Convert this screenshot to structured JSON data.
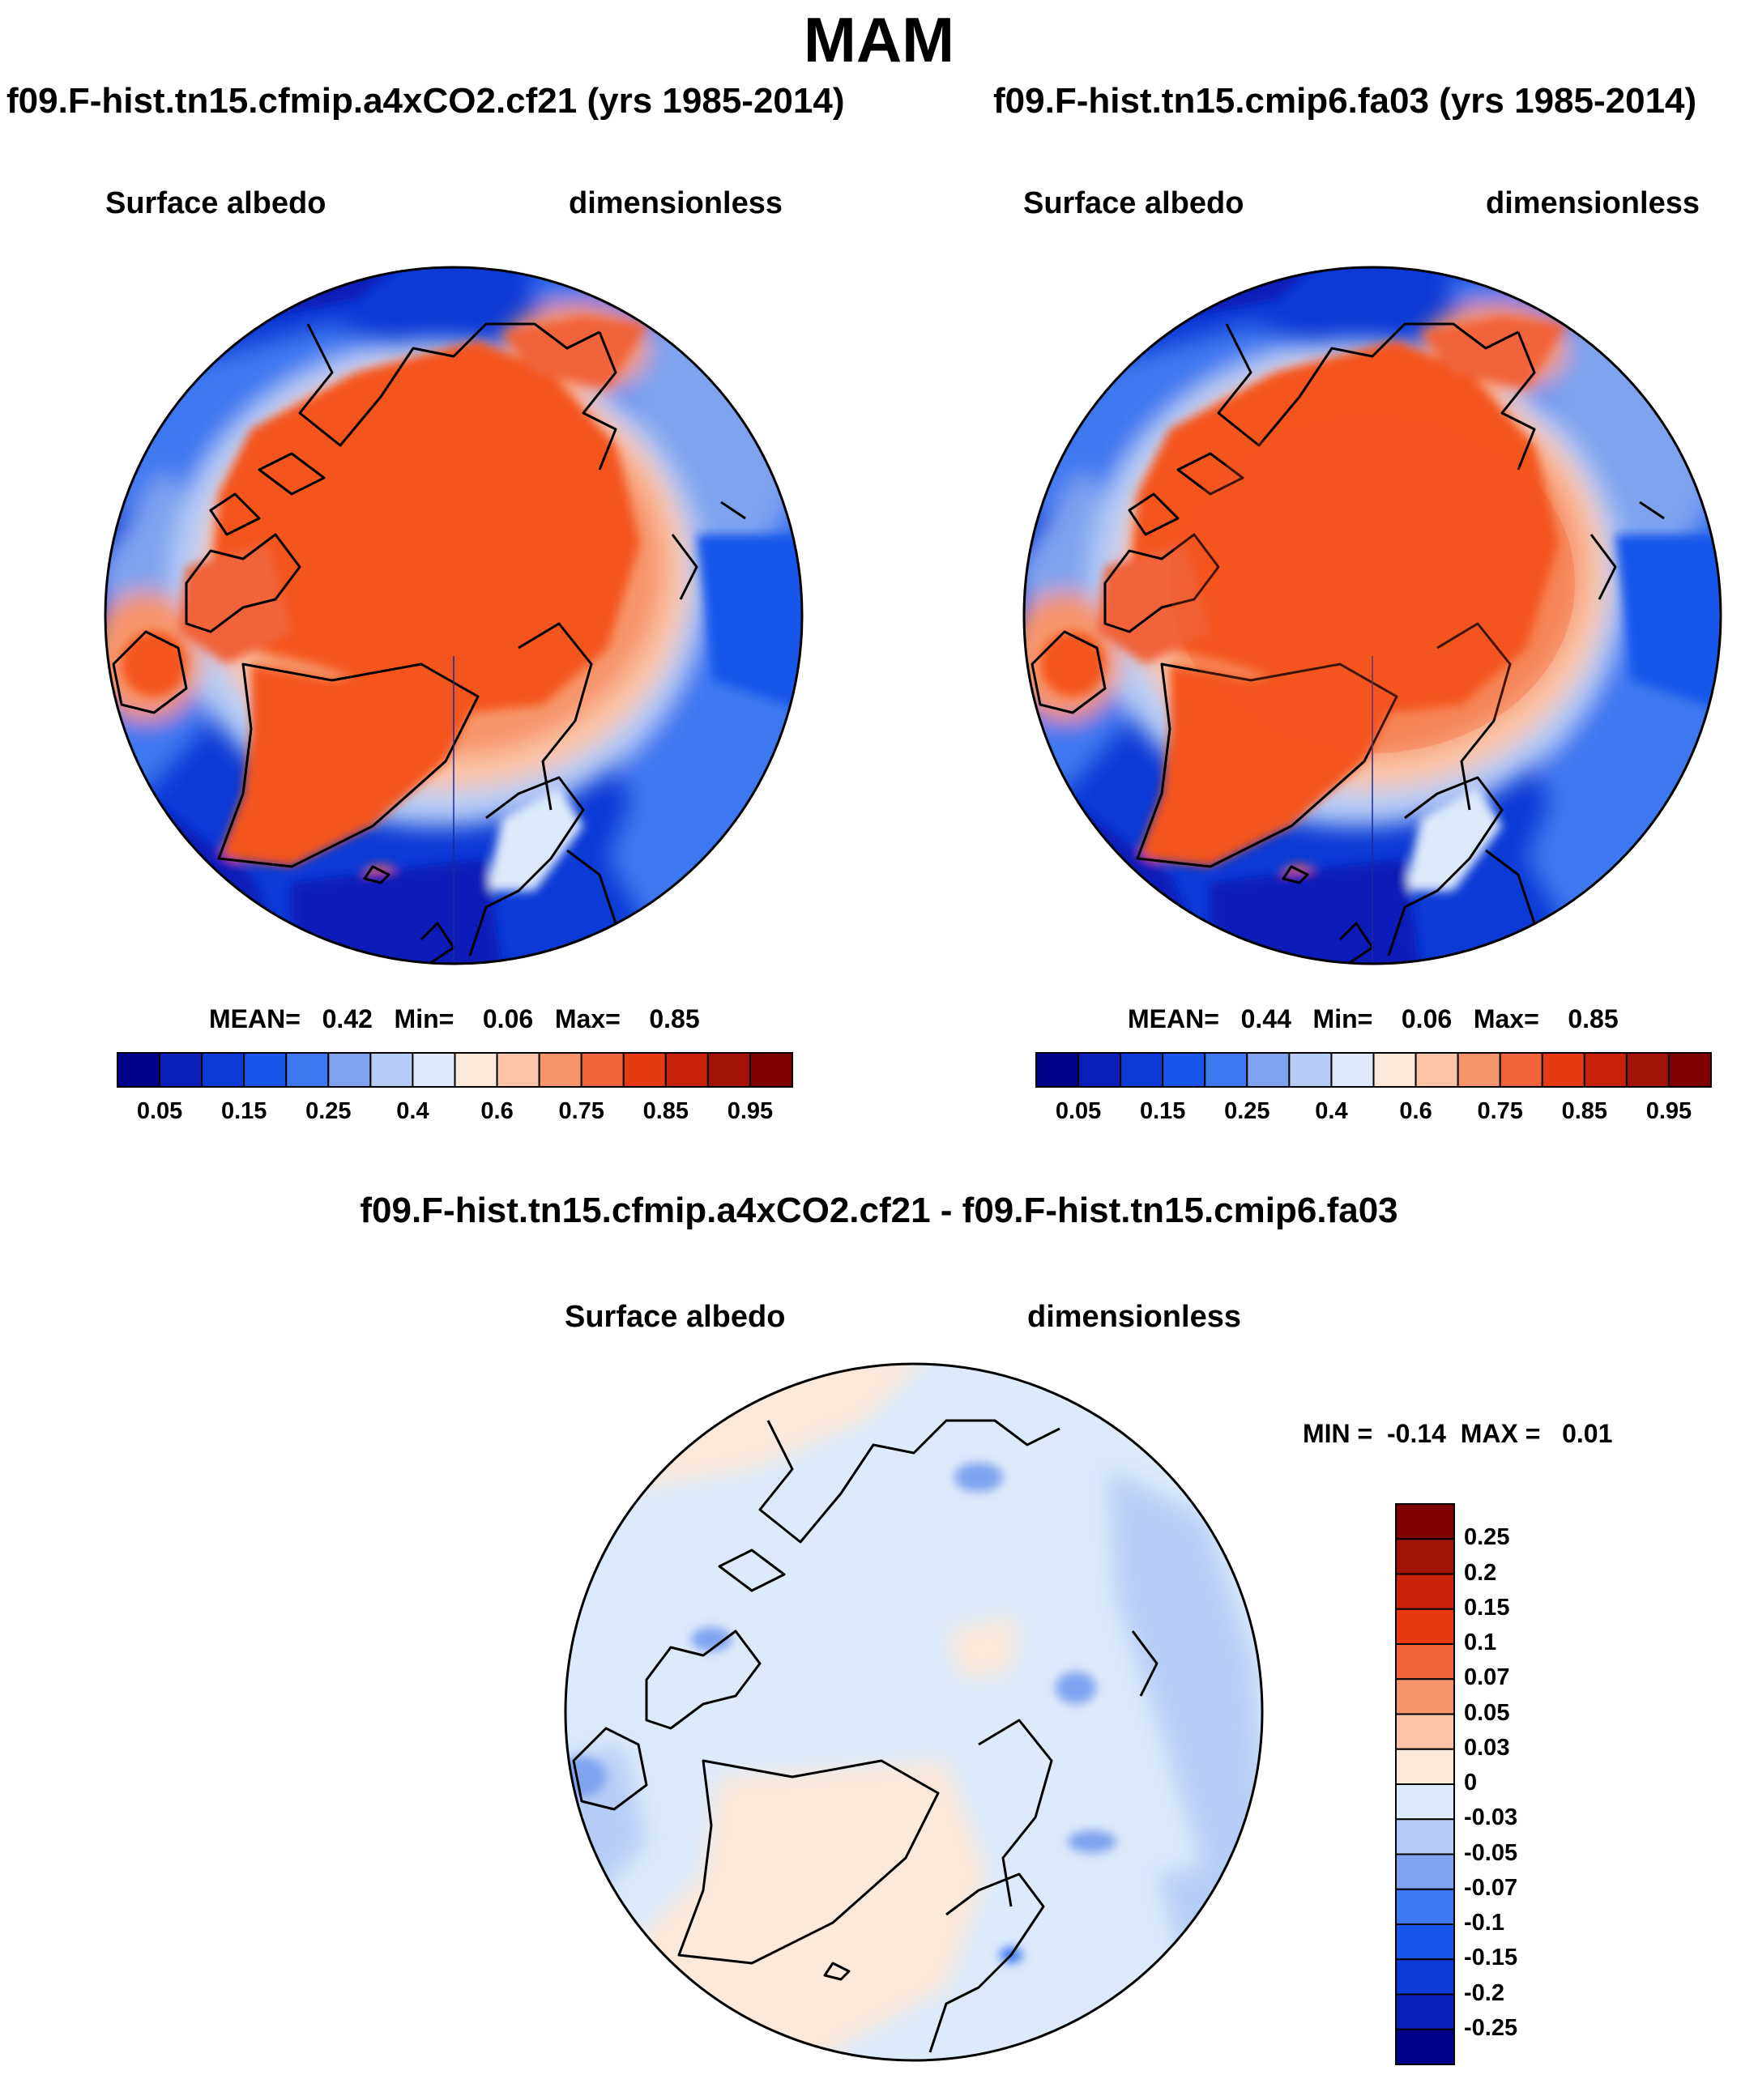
{
  "title": "MAM",
  "panels": [
    {
      "id": "left",
      "run_title": "f09.F-hist.tn15.cfmip.a4xCO2.cf21 (yrs 1985-2014)",
      "variable": "Surface albedo",
      "units": "dimensionless",
      "stats_text": "MEAN=   0.42   Min=    0.06   Max=    0.85"
    },
    {
      "id": "right",
      "run_title": "f09.F-hist.tn15.cmip6.fa03 (yrs 1985-2014)",
      "variable": "Surface albedo",
      "units": "dimensionless",
      "stats_text": "MEAN=   0.44   Min=    0.06   Max=    0.85"
    },
    {
      "id": "diff",
      "run_title": "f09.F-hist.tn15.cfmip.a4xCO2.cf21 - f09.F-hist.tn15.cmip6.fa03",
      "variable": "Surface albedo",
      "units": "dimensionless",
      "stats_text": "MIN =  -0.14  MAX =   0.01"
    }
  ],
  "colors": {
    "ocean_low": "#0a2ec4",
    "ocean_mid": "#3b6fe8",
    "snow_high": "#f4541f",
    "diff_neutral": "#d8e8fb",
    "diff_pos": "#fbe5d3"
  },
  "chart_data": [
    {
      "type": "heatmap",
      "map": "north-polar-stereographic",
      "title": "Surface albedo",
      "units": "dimensionless",
      "summary": {
        "mean": 0.42,
        "min": 0.06,
        "max": 0.85
      },
      "colorbar": {
        "orientation": "horizontal",
        "levels": [
          0.05,
          0.1,
          0.15,
          0.2,
          0.25,
          0.3,
          0.4,
          0.5,
          0.6,
          0.7,
          0.75,
          0.8,
          0.85,
          0.9,
          0.95
        ],
        "tick_labels": [
          "0.05",
          "0.15",
          "0.25",
          "0.4",
          "0.6",
          "0.75",
          "0.85",
          "0.95"
        ],
        "colors": [
          "#00008b",
          "#0a1fb8",
          "#0b3ad6",
          "#1957ea",
          "#3c78f0",
          "#7fa3ef",
          "#b5cdf6",
          "#dceafb",
          "#fde9d9",
          "#fbc4a6",
          "#f7956a",
          "#f1643a",
          "#e83a12",
          "#c82208",
          "#a31206",
          "#7e0000"
        ]
      }
    },
    {
      "type": "heatmap",
      "map": "north-polar-stereographic",
      "title": "Surface albedo",
      "units": "dimensionless",
      "summary": {
        "mean": 0.44,
        "min": 0.06,
        "max": 0.85
      },
      "colorbar": {
        "orientation": "horizontal",
        "levels": [
          0.05,
          0.1,
          0.15,
          0.2,
          0.25,
          0.3,
          0.4,
          0.5,
          0.6,
          0.7,
          0.75,
          0.8,
          0.85,
          0.9,
          0.95
        ],
        "tick_labels": [
          "0.05",
          "0.15",
          "0.25",
          "0.4",
          "0.6",
          "0.75",
          "0.85",
          "0.95"
        ],
        "colors": [
          "#00008b",
          "#0a1fb8",
          "#0b3ad6",
          "#1957ea",
          "#3c78f0",
          "#7fa3ef",
          "#b5cdf6",
          "#dceafb",
          "#fde9d9",
          "#fbc4a6",
          "#f7956a",
          "#f1643a",
          "#e83a12",
          "#c82208",
          "#a31206",
          "#7e0000"
        ]
      }
    },
    {
      "type": "heatmap",
      "map": "north-polar-stereographic",
      "title": "Surface albedo",
      "units": "dimensionless",
      "summary": {
        "min": -0.14,
        "max": 0.01
      },
      "colorbar": {
        "orientation": "vertical",
        "tick_labels": [
          "0.25",
          "0.2",
          "0.15",
          "0.1",
          "0.07",
          "0.05",
          "0.03",
          "0",
          "-0.03",
          "-0.05",
          "-0.07",
          "-0.1",
          "-0.15",
          "-0.2",
          "-0.25"
        ],
        "colors": [
          "#7e0000",
          "#a31206",
          "#c82208",
          "#e83a12",
          "#f1643a",
          "#f7956a",
          "#fbc4a6",
          "#fde9d9",
          "#dceafb",
          "#b5cdf6",
          "#7fa3ef",
          "#3c78f0",
          "#1957ea",
          "#0b3ad6",
          "#0a1fb8",
          "#00008b"
        ]
      }
    }
  ]
}
